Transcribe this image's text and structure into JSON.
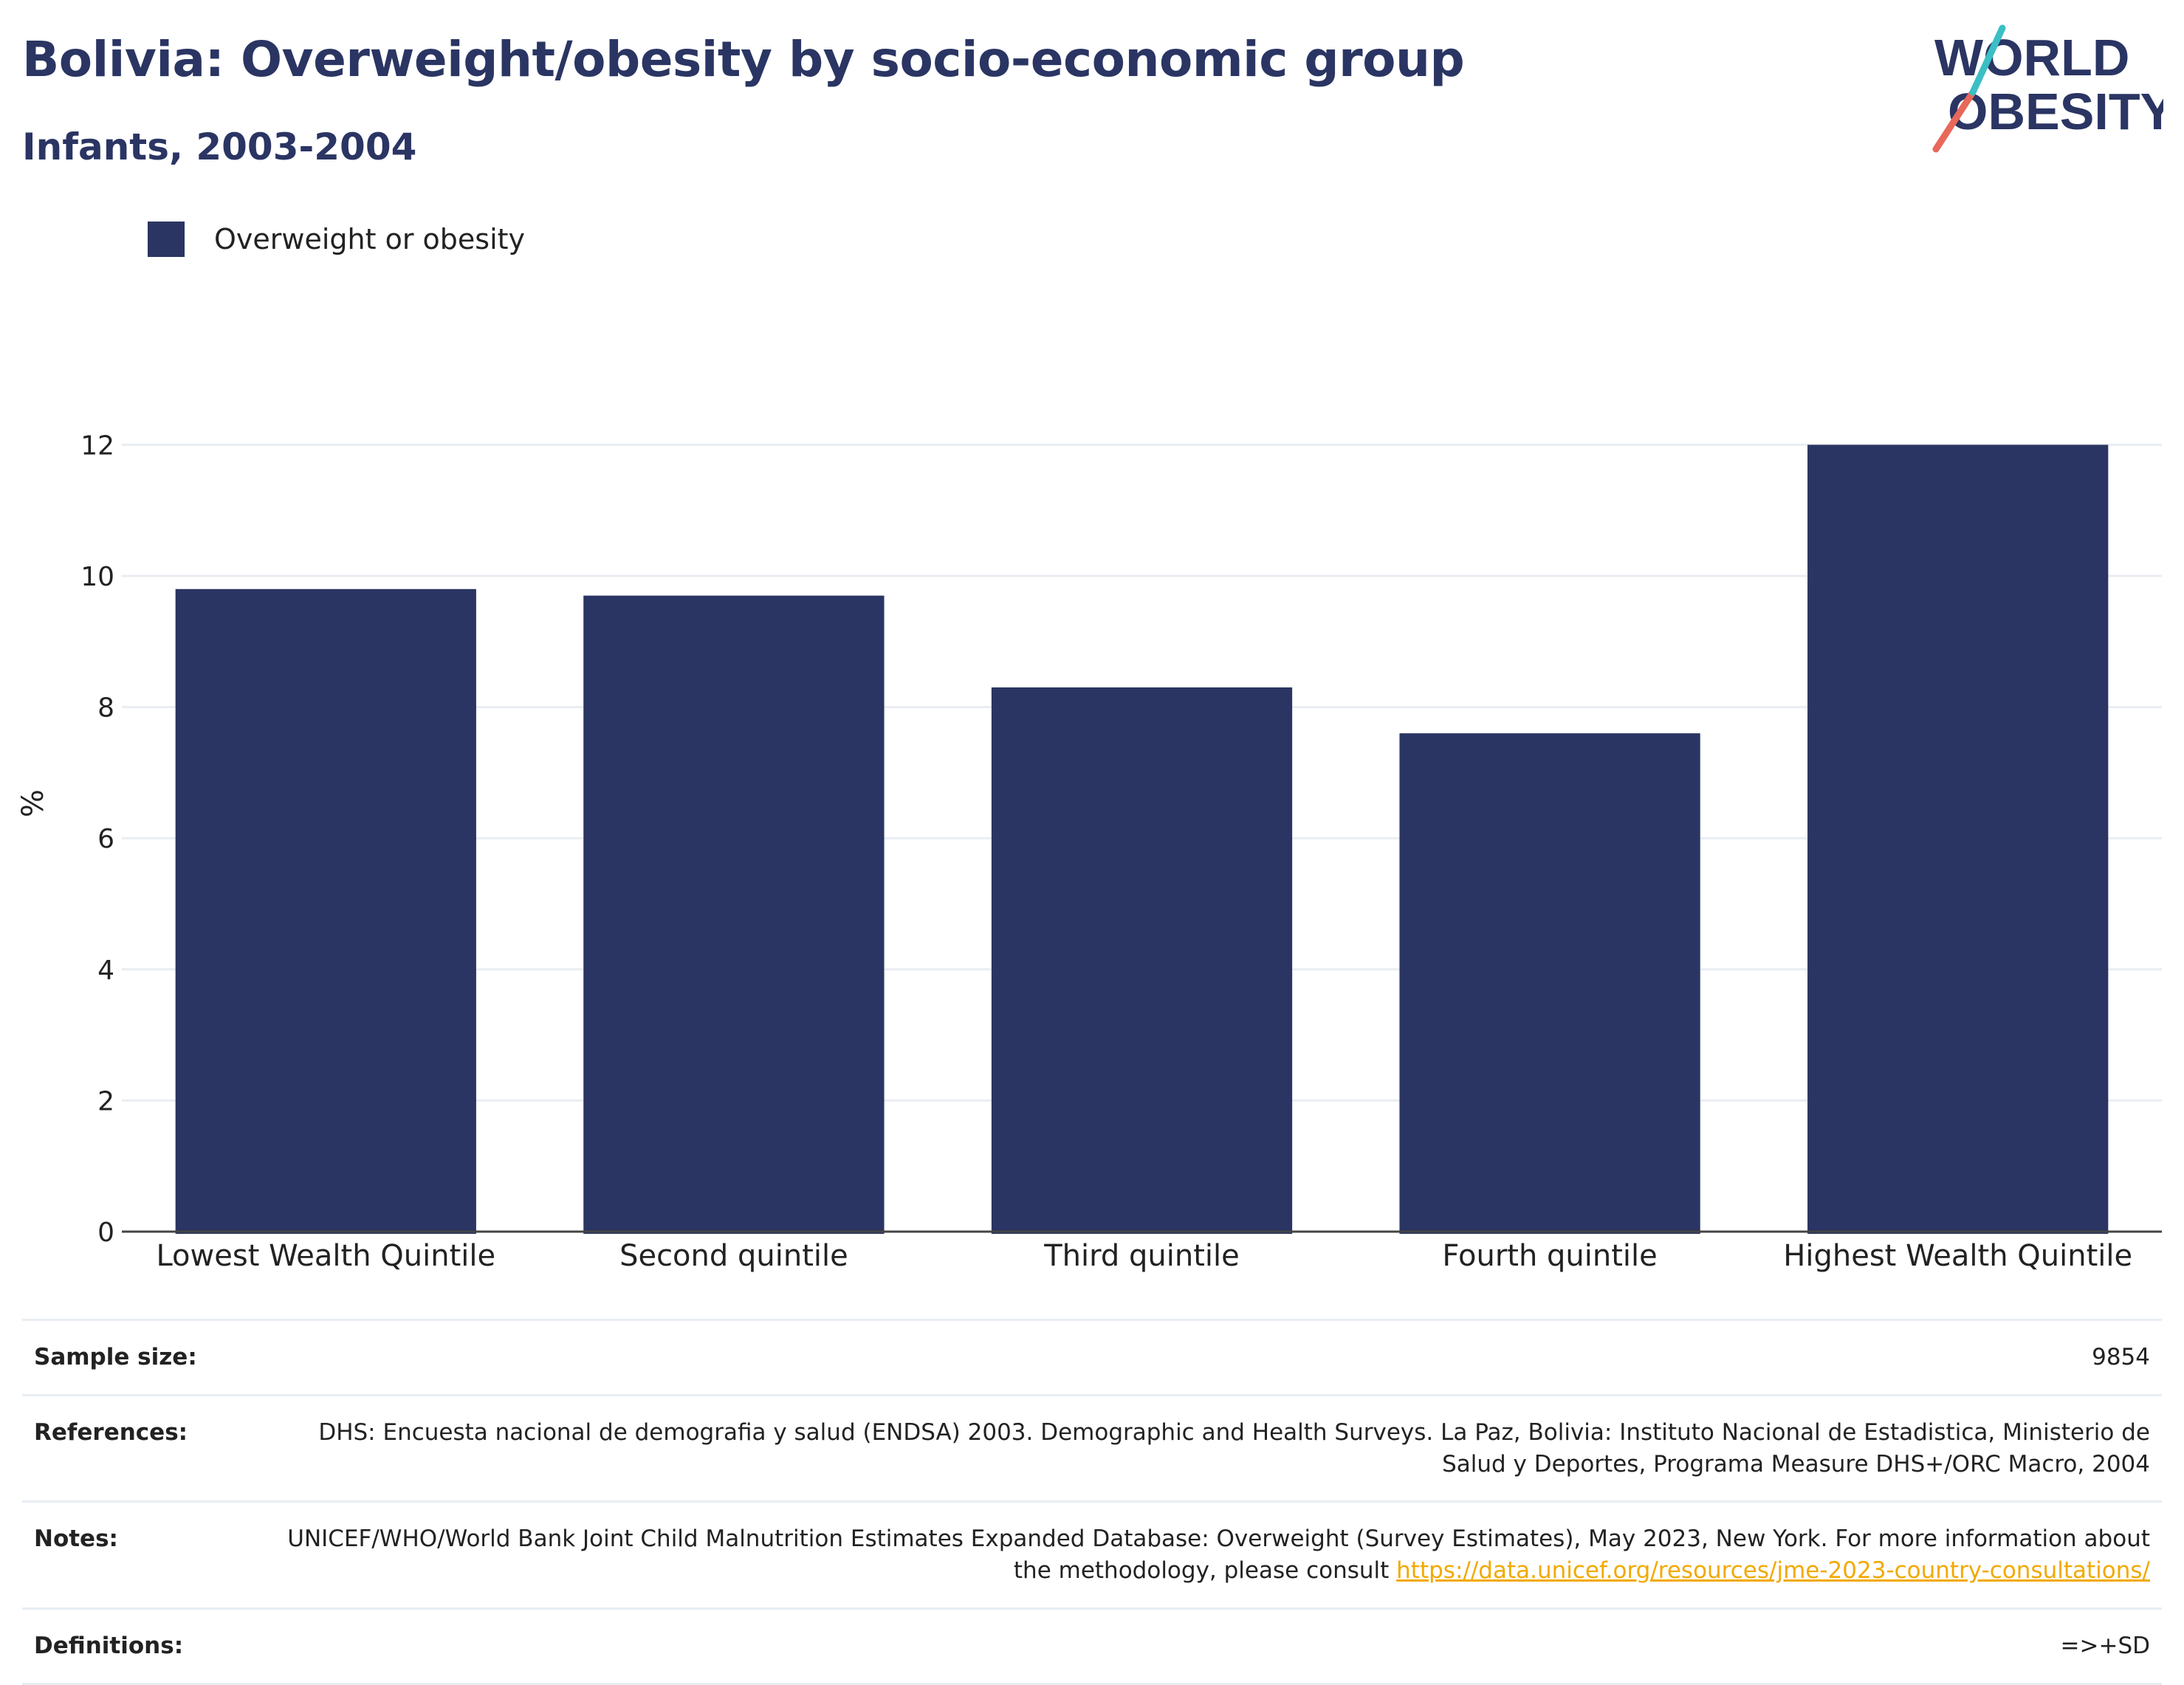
{
  "header": {
    "title": "Bolivia: Overweight/obesity by socio-economic group",
    "subtitle": "Infants, 2003-2004"
  },
  "logo": {
    "line1": "WORLD",
    "line2": "OBESITY",
    "colors": {
      "text": "#2a3563",
      "slash_bottom": "#e8685a",
      "slash_top": "#3bbfc4"
    }
  },
  "colors": {
    "bar": "#2a3563",
    "grid": "#e9edf2",
    "axis": "#444444",
    "link": "#f2a900"
  },
  "chart_data": {
    "type": "bar",
    "categories": [
      "Lowest Wealth Quintile",
      "Second quintile",
      "Third quintile",
      "Fourth quintile",
      "Highest Wealth Quintile"
    ],
    "series": [
      {
        "name": "Overweight or obesity",
        "values": [
          9.8,
          9.7,
          8.3,
          7.6,
          12.0
        ]
      }
    ],
    "ylabel": "%",
    "xlabel": "",
    "ylim": [
      0,
      12.5
    ],
    "yticks": [
      0,
      2,
      4,
      6,
      8,
      10,
      12
    ],
    "grid": true,
    "legend": "top-left"
  },
  "info": {
    "sample_size_label": "Sample size:",
    "sample_size_value": "9854",
    "references_label": "References:",
    "references_value": "DHS: Encuesta nacional de demografia y salud (ENDSA) 2003. Demographic and Health Surveys. La Paz, Bolivia: Instituto Nacional de Estadistica, Ministerio de Salud y Deportes, Programa Measure DHS+/ORC Macro, 2004",
    "notes_label": "Notes:",
    "notes_text": "UNICEF/WHO/World Bank Joint Child Malnutrition Estimates Expanded Database: Overweight (Survey Estimates), May 2023, New York. For more information about the methodology, please consult ",
    "notes_link": "https://data.unicef.org/resources/jme-2023-country-consultations/",
    "definitions_label": "Definitions:",
    "definitions_value": "=>+SD"
  }
}
